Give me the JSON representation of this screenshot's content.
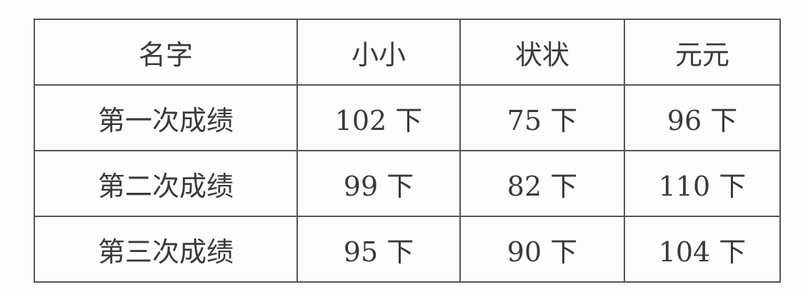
{
  "table": {
    "headers": [
      "名字",
      "小小",
      "状状",
      "元元"
    ],
    "rows": [
      [
        "第一次成绩",
        "102 下",
        "75 下",
        "96 下"
      ],
      [
        "第二次成绩",
        "99 下",
        "82 下",
        "110 下"
      ],
      [
        "第三次成绩",
        "95 下",
        "90 下",
        "104 下"
      ]
    ]
  }
}
